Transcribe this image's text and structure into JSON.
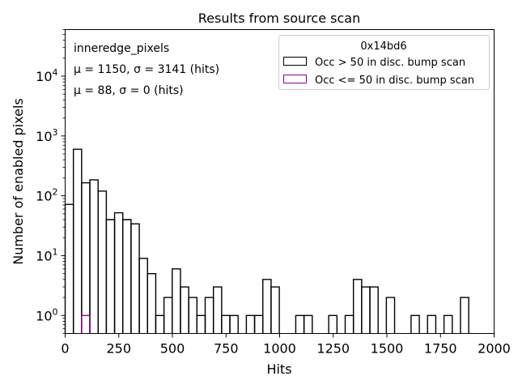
{
  "chart_data": {
    "type": "histogram",
    "scale": "log-y",
    "title": "Results from source scan",
    "xlabel": "Hits",
    "ylabel": "Number of enabled pixels",
    "xlim": [
      0,
      2000
    ],
    "ylim": [
      0.5,
      60000
    ],
    "bin_width": 38.4,
    "x_ticks": [
      {
        "value": 0,
        "label": "0"
      },
      {
        "value": 250,
        "label": "250"
      },
      {
        "value": 500,
        "label": "500"
      },
      {
        "value": 750,
        "label": "750"
      },
      {
        "value": 1000,
        "label": "1000"
      },
      {
        "value": 1250,
        "label": "1250"
      },
      {
        "value": 1500,
        "label": "1500"
      },
      {
        "value": 1750,
        "label": "1750"
      },
      {
        "value": 2000,
        "label": "2000"
      }
    ],
    "y_ticks": [
      {
        "value": 1,
        "base": "10",
        "exp": "0"
      },
      {
        "value": 10,
        "base": "10",
        "exp": "1"
      },
      {
        "value": 100,
        "base": "10",
        "exp": "2"
      },
      {
        "value": 1000,
        "base": "10",
        "exp": "3"
      },
      {
        "value": 10000,
        "base": "10",
        "exp": "4"
      }
    ],
    "annotations": {
      "name": "inneredge_pixels",
      "stats_line1": "μ = 1150, σ = 3141 (hits)",
      "stats_line2": "μ = 88, σ = 0 (hits)"
    },
    "legend": {
      "title": "0x14bd6",
      "placement": "top-right",
      "entries": [
        {
          "label": "Occ > 50 in disc. bump scan",
          "color": "#000000"
        },
        {
          "label": "Occ <= 50 in disc. bump scan",
          "color": "#8b008b"
        }
      ]
    },
    "series": [
      {
        "name": "Occ > 50 in disc. bump scan",
        "color": "#000000",
        "values": [
          72,
          600,
          165,
          185,
          120,
          40,
          52,
          40,
          34,
          9,
          5,
          1,
          2,
          6,
          3,
          2,
          1,
          2,
          3,
          1,
          1,
          0,
          1,
          1,
          4,
          3,
          0,
          0,
          1,
          1,
          0,
          0,
          1,
          0,
          1,
          4,
          3,
          3,
          0,
          2,
          0,
          0,
          1,
          0,
          1,
          0,
          1,
          0,
          2,
          0,
          0,
          0
        ]
      },
      {
        "name": "Occ <= 50 in disc. bump scan",
        "color": "#8b008b",
        "values": [
          0,
          0,
          1,
          0,
          0,
          0,
          0,
          0,
          0,
          0,
          0,
          0,
          0,
          0,
          0,
          0,
          0,
          0,
          0,
          0,
          0,
          0,
          0,
          0,
          0,
          0,
          0,
          0,
          0,
          0,
          0,
          0,
          0,
          0,
          0,
          0,
          0,
          0,
          0,
          0,
          0,
          0,
          0,
          0,
          0,
          0,
          0,
          0,
          0,
          0,
          0,
          0
        ]
      }
    ]
  }
}
